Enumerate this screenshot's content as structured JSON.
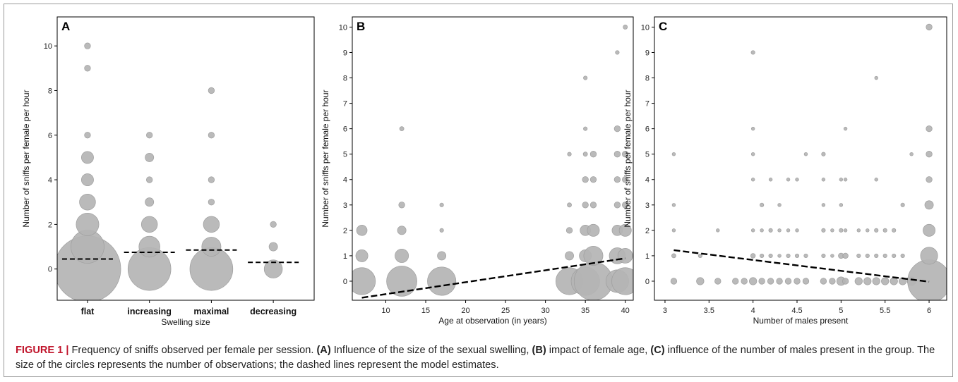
{
  "figure": {
    "caption": {
      "label": "FIGURE 1 |",
      "text_1": " Frequency of sniffs observed per female per session. ",
      "a_tag": "(A)",
      "text_2": " Influence of the size of the sexual swelling, ",
      "b_tag": "(B)",
      "text_3": " impact of female age, ",
      "c_tag": "(C)",
      "text_4": " influence of the number of males present in the group. The size of the circles represents the number of observations; the dashed lines represent the model estimates."
    }
  },
  "colors": {
    "circle_fill": "#b4b4b4",
    "circle_stroke": "#9e9e9e",
    "estimate_line": "#000000",
    "caption_label": "#c0142b"
  },
  "chart_data": [
    {
      "panel": "A",
      "type": "scatter",
      "xlabel": "Swelling size",
      "ylabel": "Number of sniffs per female per hour",
      "categories": [
        "flat",
        "increasing",
        "maximal",
        "decreasing"
      ],
      "ylim": [
        -1.4,
        11.3
      ],
      "yticks": [
        0,
        2,
        4,
        6,
        8,
        10
      ],
      "points": [
        {
          "x": "flat",
          "y": 0,
          "n": 120
        },
        {
          "x": "flat",
          "y": 1,
          "n": 30
        },
        {
          "x": "flat",
          "y": 2,
          "n": 14
        },
        {
          "x": "flat",
          "y": 3,
          "n": 7
        },
        {
          "x": "flat",
          "y": 4,
          "n": 4
        },
        {
          "x": "flat",
          "y": 5,
          "n": 4
        },
        {
          "x": "flat",
          "y": 6,
          "n": 1
        },
        {
          "x": "flat",
          "y": 9,
          "n": 1
        },
        {
          "x": "flat",
          "y": 10,
          "n": 1
        },
        {
          "x": "increasing",
          "y": 0,
          "n": 50
        },
        {
          "x": "increasing",
          "y": 1,
          "n": 12
        },
        {
          "x": "increasing",
          "y": 2,
          "n": 7
        },
        {
          "x": "increasing",
          "y": 3,
          "n": 2
        },
        {
          "x": "increasing",
          "y": 4,
          "n": 1
        },
        {
          "x": "increasing",
          "y": 5,
          "n": 2
        },
        {
          "x": "increasing",
          "y": 6,
          "n": 1
        },
        {
          "x": "maximal",
          "y": 0,
          "n": 50
        },
        {
          "x": "maximal",
          "y": 1,
          "n": 10
        },
        {
          "x": "maximal",
          "y": 2,
          "n": 7
        },
        {
          "x": "maximal",
          "y": 3,
          "n": 1
        },
        {
          "x": "maximal",
          "y": 4,
          "n": 1
        },
        {
          "x": "maximal",
          "y": 6,
          "n": 1
        },
        {
          "x": "maximal",
          "y": 8,
          "n": 1
        },
        {
          "x": "decreasing",
          "y": 0,
          "n": 9
        },
        {
          "x": "decreasing",
          "y": 1,
          "n": 2
        },
        {
          "x": "decreasing",
          "y": 2,
          "n": 1
        }
      ],
      "estimates": [
        {
          "x": "flat",
          "y": 0.45
        },
        {
          "x": "increasing",
          "y": 0.75
        },
        {
          "x": "maximal",
          "y": 0.85
        },
        {
          "x": "decreasing",
          "y": 0.3
        }
      ]
    },
    {
      "panel": "B",
      "type": "scatter",
      "xlabel": "Age at observation (in years)",
      "ylabel": "Number of sniffs per female per hour",
      "xlim": [
        5.8,
        41
      ],
      "xticks": [
        10,
        15,
        20,
        25,
        30,
        35,
        40
      ],
      "ylim": [
        -0.75,
        10.4
      ],
      "yticks": [
        0,
        1,
        2,
        3,
        4,
        5,
        6,
        7,
        8,
        9,
        10
      ],
      "points": [
        {
          "x": 7,
          "y": 0,
          "n": 20
        },
        {
          "x": 7,
          "y": 1,
          "n": 4
        },
        {
          "x": 7,
          "y": 2,
          "n": 3
        },
        {
          "x": 12,
          "y": 0,
          "n": 25
        },
        {
          "x": 12,
          "y": 1,
          "n": 5
        },
        {
          "x": 12,
          "y": 2,
          "n": 2
        },
        {
          "x": 12,
          "y": 3,
          "n": 1
        },
        {
          "x": 12,
          "y": 6,
          "n": 0.5
        },
        {
          "x": 17,
          "y": 0,
          "n": 22
        },
        {
          "x": 17,
          "y": 1,
          "n": 2
        },
        {
          "x": 17,
          "y": 2,
          "n": 0.4
        },
        {
          "x": 17,
          "y": 3,
          "n": 0.4
        },
        {
          "x": 33,
          "y": 0,
          "n": 20
        },
        {
          "x": 33,
          "y": 1,
          "n": 2
        },
        {
          "x": 33,
          "y": 2,
          "n": 1
        },
        {
          "x": 33,
          "y": 3,
          "n": 0.5
        },
        {
          "x": 33,
          "y": 5,
          "n": 0.4
        },
        {
          "x": 35,
          "y": 0,
          "n": 22
        },
        {
          "x": 35,
          "y": 1,
          "n": 4
        },
        {
          "x": 35,
          "y": 2,
          "n": 3
        },
        {
          "x": 35,
          "y": 3,
          "n": 1
        },
        {
          "x": 35,
          "y": 4,
          "n": 1
        },
        {
          "x": 35,
          "y": 5,
          "n": 0.5
        },
        {
          "x": 35,
          "y": 6,
          "n": 0.4
        },
        {
          "x": 35,
          "y": 8,
          "n": 0.4
        },
        {
          "x": 36,
          "y": 0,
          "n": 40
        },
        {
          "x": 36,
          "y": 1,
          "n": 10
        },
        {
          "x": 36,
          "y": 2,
          "n": 4
        },
        {
          "x": 36,
          "y": 3,
          "n": 1
        },
        {
          "x": 36,
          "y": 4,
          "n": 1
        },
        {
          "x": 36,
          "y": 5,
          "n": 1
        },
        {
          "x": 39,
          "y": 0,
          "n": 14
        },
        {
          "x": 39,
          "y": 1,
          "n": 7
        },
        {
          "x": 39,
          "y": 2,
          "n": 3
        },
        {
          "x": 39,
          "y": 3,
          "n": 1
        },
        {
          "x": 39,
          "y": 4,
          "n": 1
        },
        {
          "x": 39,
          "y": 5,
          "n": 1
        },
        {
          "x": 39,
          "y": 6,
          "n": 1
        },
        {
          "x": 39,
          "y": 9,
          "n": 0.4
        },
        {
          "x": 40,
          "y": 0,
          "n": 20
        },
        {
          "x": 40,
          "y": 1,
          "n": 6
        },
        {
          "x": 40,
          "y": 2,
          "n": 4
        },
        {
          "x": 40,
          "y": 3,
          "n": 1
        },
        {
          "x": 40,
          "y": 4,
          "n": 1
        },
        {
          "x": 40,
          "y": 5,
          "n": 1
        },
        {
          "x": 40,
          "y": 10,
          "n": 0.5
        }
      ],
      "estimates": [
        {
          "x": 7,
          "y": -0.65
        },
        {
          "x": 40,
          "y": 0.9
        }
      ]
    },
    {
      "panel": "C",
      "type": "scatter",
      "xlabel": "Number of males present",
      "ylabel": "Number of sniffs per female per hour",
      "xlim": [
        2.88,
        6.2
      ],
      "xticks": [
        3,
        3.5,
        4,
        4.5,
        5,
        5.5,
        6
      ],
      "ylim": [
        -0.75,
        10.4
      ],
      "yticks": [
        0,
        1,
        2,
        3,
        4,
        5,
        6,
        7,
        8,
        9,
        10
      ],
      "points": [
        {
          "x": 3.1,
          "y": 0,
          "n": 1
        },
        {
          "x": 3.1,
          "y": 1,
          "n": 0.5
        },
        {
          "x": 3.1,
          "y": 2,
          "n": 0.3
        },
        {
          "x": 3.1,
          "y": 3,
          "n": 0.3
        },
        {
          "x": 3.1,
          "y": 5,
          "n": 0.3
        },
        {
          "x": 3.4,
          "y": 0,
          "n": 1.5
        },
        {
          "x": 3.4,
          "y": 1,
          "n": 0.4
        },
        {
          "x": 3.6,
          "y": 0,
          "n": 1
        },
        {
          "x": 3.6,
          "y": 2,
          "n": 0.3
        },
        {
          "x": 3.8,
          "y": 0,
          "n": 1
        },
        {
          "x": 3.9,
          "y": 0,
          "n": 1
        },
        {
          "x": 4,
          "y": 0,
          "n": 1.5
        },
        {
          "x": 4,
          "y": 1,
          "n": 0.6
        },
        {
          "x": 4,
          "y": 2,
          "n": 0.3
        },
        {
          "x": 4,
          "y": 4,
          "n": 0.3
        },
        {
          "x": 4,
          "y": 5,
          "n": 0.3
        },
        {
          "x": 4,
          "y": 6,
          "n": 0.3
        },
        {
          "x": 4,
          "y": 9,
          "n": 0.4
        },
        {
          "x": 4.1,
          "y": 0,
          "n": 1
        },
        {
          "x": 4.1,
          "y": 1,
          "n": 0.4
        },
        {
          "x": 4.1,
          "y": 2,
          "n": 0.3
        },
        {
          "x": 4.1,
          "y": 3,
          "n": 0.4
        },
        {
          "x": 4.2,
          "y": 0,
          "n": 1
        },
        {
          "x": 4.2,
          "y": 1,
          "n": 0.4
        },
        {
          "x": 4.2,
          "y": 2,
          "n": 0.4
        },
        {
          "x": 4.2,
          "y": 4,
          "n": 0.3
        },
        {
          "x": 4.3,
          "y": 0,
          "n": 1
        },
        {
          "x": 4.3,
          "y": 1,
          "n": 0.3
        },
        {
          "x": 4.3,
          "y": 2,
          "n": 0.3
        },
        {
          "x": 4.3,
          "y": 3,
          "n": 0.3
        },
        {
          "x": 4.4,
          "y": 0,
          "n": 1
        },
        {
          "x": 4.4,
          "y": 1,
          "n": 0.4
        },
        {
          "x": 4.4,
          "y": 2,
          "n": 0.3
        },
        {
          "x": 4.4,
          "y": 4,
          "n": 0.3
        },
        {
          "x": 4.5,
          "y": 0,
          "n": 1
        },
        {
          "x": 4.5,
          "y": 1,
          "n": 0.4
        },
        {
          "x": 4.5,
          "y": 2,
          "n": 0.3
        },
        {
          "x": 4.5,
          "y": 4,
          "n": 0.3
        },
        {
          "x": 4.6,
          "y": 0,
          "n": 1
        },
        {
          "x": 4.6,
          "y": 1,
          "n": 0.4
        },
        {
          "x": 4.6,
          "y": 5,
          "n": 0.3
        },
        {
          "x": 4.8,
          "y": 0,
          "n": 1
        },
        {
          "x": 4.8,
          "y": 1,
          "n": 0.4
        },
        {
          "x": 4.8,
          "y": 2,
          "n": 0.4
        },
        {
          "x": 4.8,
          "y": 3,
          "n": 0.3
        },
        {
          "x": 4.8,
          "y": 4,
          "n": 0.3
        },
        {
          "x": 4.8,
          "y": 5,
          "n": 0.4
        },
        {
          "x": 4.9,
          "y": 0,
          "n": 1
        },
        {
          "x": 4.9,
          "y": 1,
          "n": 0.3
        },
        {
          "x": 4.9,
          "y": 2,
          "n": 0.3
        },
        {
          "x": 5,
          "y": 0,
          "n": 2
        },
        {
          "x": 5,
          "y": 1,
          "n": 0.8
        },
        {
          "x": 5,
          "y": 2,
          "n": 0.4
        },
        {
          "x": 5,
          "y": 3,
          "n": 0.3
        },
        {
          "x": 5,
          "y": 4,
          "n": 0.3
        },
        {
          "x": 5.05,
          "y": 0,
          "n": 1
        },
        {
          "x": 5.05,
          "y": 1,
          "n": 0.8
        },
        {
          "x": 5.05,
          "y": 2,
          "n": 0.3
        },
        {
          "x": 5.05,
          "y": 4,
          "n": 0.3
        },
        {
          "x": 5.05,
          "y": 6,
          "n": 0.3
        },
        {
          "x": 5.2,
          "y": 0,
          "n": 1.5
        },
        {
          "x": 5.2,
          "y": 1,
          "n": 0.4
        },
        {
          "x": 5.2,
          "y": 2,
          "n": 0.3
        },
        {
          "x": 5.3,
          "y": 0,
          "n": 1.5
        },
        {
          "x": 5.3,
          "y": 1,
          "n": 0.4
        },
        {
          "x": 5.3,
          "y": 2,
          "n": 0.3
        },
        {
          "x": 5.4,
          "y": 0,
          "n": 1.5
        },
        {
          "x": 5.4,
          "y": 1,
          "n": 0.4
        },
        {
          "x": 5.4,
          "y": 2,
          "n": 0.4
        },
        {
          "x": 5.4,
          "y": 4,
          "n": 0.3
        },
        {
          "x": 5.4,
          "y": 8,
          "n": 0.3
        },
        {
          "x": 5.5,
          "y": 0,
          "n": 1.5
        },
        {
          "x": 5.5,
          "y": 1,
          "n": 0.4
        },
        {
          "x": 5.5,
          "y": 2,
          "n": 0.4
        },
        {
          "x": 5.6,
          "y": 0,
          "n": 1.5
        },
        {
          "x": 5.6,
          "y": 1,
          "n": 0.4
        },
        {
          "x": 5.6,
          "y": 2,
          "n": 0.4
        },
        {
          "x": 5.7,
          "y": 0,
          "n": 1.5
        },
        {
          "x": 5.7,
          "y": 1,
          "n": 0.4
        },
        {
          "x": 5.7,
          "y": 3,
          "n": 0.4
        },
        {
          "x": 5.8,
          "y": 0,
          "n": 2
        },
        {
          "x": 5.8,
          "y": 5,
          "n": 0.3
        },
        {
          "x": 6,
          "y": 0,
          "n": 50
        },
        {
          "x": 6,
          "y": 1,
          "n": 8
        },
        {
          "x": 6,
          "y": 2,
          "n": 4
        },
        {
          "x": 6,
          "y": 3,
          "n": 2
        },
        {
          "x": 6,
          "y": 4,
          "n": 1
        },
        {
          "x": 6,
          "y": 5,
          "n": 1
        },
        {
          "x": 6,
          "y": 6,
          "n": 1
        },
        {
          "x": 6,
          "y": 10,
          "n": 1
        }
      ],
      "estimates": [
        {
          "x": 3.1,
          "y": 1.22
        },
        {
          "x": 6,
          "y": -0.02
        }
      ]
    }
  ]
}
